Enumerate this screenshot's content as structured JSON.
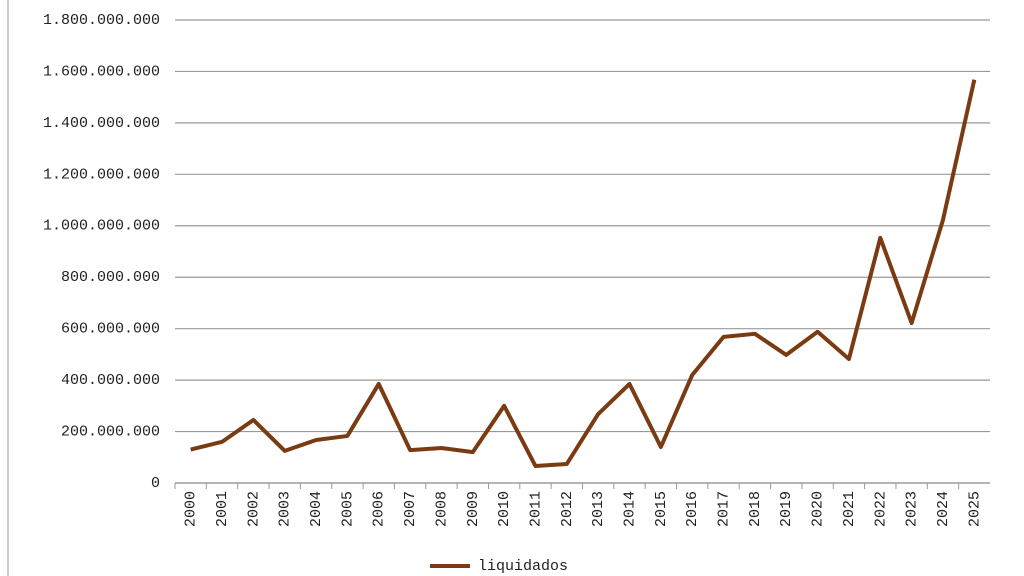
{
  "chart_data": {
    "type": "line",
    "categories": [
      "2000",
      "2001",
      "2002",
      "2003",
      "2004",
      "2005",
      "2006",
      "2007",
      "2008",
      "2009",
      "2010",
      "2011",
      "2012",
      "2013",
      "2014",
      "2015",
      "2016",
      "2017",
      "2018",
      "2019",
      "2020",
      "2021",
      "2022",
      "2023",
      "2024",
      "2025"
    ],
    "series": [
      {
        "name": "liquidados",
        "color": "#7a3b12",
        "values": [
          130000000,
          160000000,
          245000000,
          125000000,
          167000000,
          183000000,
          385000000,
          128000000,
          136000000,
          120000000,
          300000000,
          66000000,
          74000000,
          268000000,
          385000000,
          140000000,
          420000000,
          568000000,
          580000000,
          498000000,
          588000000,
          482000000,
          953000000,
          622000000,
          1023000000,
          1568000000
        ]
      }
    ],
    "ylim": [
      0,
      1800000000
    ],
    "yticks": [
      0,
      {
        "value": 200000000,
        "label": "200.000.000"
      },
      {
        "value": 400000000,
        "label": "400.000.000"
      },
      {
        "value": 600000000,
        "label": "600.000.000"
      },
      {
        "value": 800000000,
        "label": "800.000.000"
      },
      {
        "value": 1000000000,
        "label": "1.000.000.000"
      },
      {
        "value": 1200000000,
        "label": "1.200.000.000"
      },
      {
        "value": 1400000000,
        "label": "1.400.000.000"
      },
      {
        "value": 1600000000,
        "label": "1.600.000.000"
      },
      {
        "value": 1800000000,
        "label": "1.800.000.000"
      }
    ],
    "grid": true,
    "legend": "bottom"
  }
}
